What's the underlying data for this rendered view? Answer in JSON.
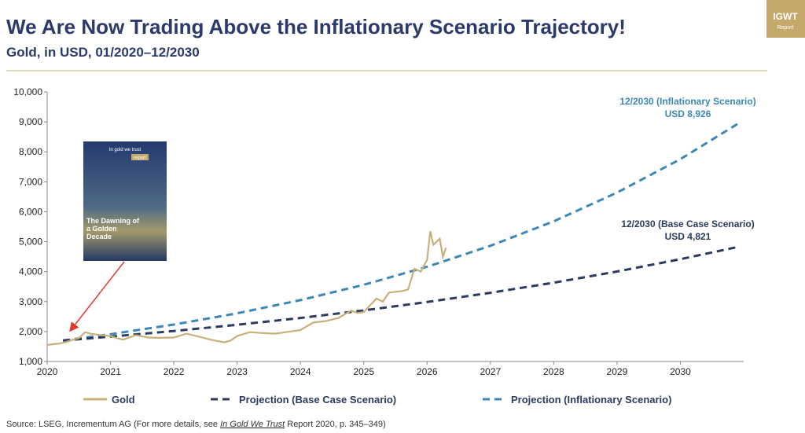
{
  "chart_data": {
    "type": "line",
    "title": "We Are Now Trading Above the Inflationary Scenario Trajectory!",
    "subtitle": "Gold, in USD, 01/2020–12/2030",
    "logo": {
      "title": "IGWT",
      "subtitle": "Report"
    },
    "cover": {
      "brand": "In gold we trust",
      "tag": "report",
      "title": "The Dawning of a Golden Decade"
    },
    "annotations": [
      {
        "title": "12/2030 (Inflationary Scenario)",
        "value": "USD 8,926"
      },
      {
        "title": "12/2030 (Base Case Scenario)",
        "value": "USD 4,821"
      }
    ],
    "xlim": [
      2020,
      2031
    ],
    "xticks": [
      2020,
      2021,
      2022,
      2023,
      2024,
      2025,
      2026,
      2027,
      2028,
      2029,
      2030
    ],
    "ylim": [
      1000,
      10000
    ],
    "yticks": [
      {
        "value": 1000,
        "label": "1,000"
      },
      {
        "value": 2000,
        "label": "2,000"
      },
      {
        "value": 3000,
        "label": "3,000"
      },
      {
        "value": 4000,
        "label": "4,000"
      },
      {
        "value": 5000,
        "label": "5,000"
      },
      {
        "value": 6000,
        "label": "6,000"
      },
      {
        "value": 7000,
        "label": "7,000"
      },
      {
        "value": 8000,
        "label": "8,000"
      },
      {
        "value": 9000,
        "label": "9,000"
      },
      {
        "value": 10000,
        "label": "10,000"
      }
    ],
    "series": [
      {
        "name": "Gold",
        "color": "#c8b07a",
        "dashed": false,
        "x": [
          2020.0,
          2020.1,
          2020.2,
          2020.3,
          2020.4,
          2020.5,
          2020.6,
          2020.7,
          2020.85,
          2021.0,
          2021.1,
          2021.2,
          2021.4,
          2021.6,
          2021.8,
          2022.0,
          2022.2,
          2022.4,
          2022.6,
          2022.8,
          2022.9,
          2023.0,
          2023.2,
          2023.4,
          2023.6,
          2023.8,
          2024.0,
          2024.2,
          2024.4,
          2024.6,
          2024.8,
          2024.9,
          2025.0,
          2025.2,
          2025.3,
          2025.4,
          2025.6,
          2025.7,
          2025.8,
          2025.9,
          2026.0,
          2026.05,
          2026.1,
          2026.2,
          2026.25,
          2026.3
        ],
        "values": [
          1550,
          1580,
          1600,
          1650,
          1720,
          1780,
          1980,
          1920,
          1880,
          1850,
          1780,
          1730,
          1880,
          1800,
          1790,
          1800,
          1930,
          1830,
          1720,
          1640,
          1700,
          1850,
          1980,
          1950,
          1930,
          1990,
          2050,
          2300,
          2350,
          2450,
          2700,
          2620,
          2650,
          3100,
          3000,
          3300,
          3350,
          3400,
          4100,
          4000,
          4400,
          5350,
          4900,
          5100,
          4500,
          4800
        ]
      },
      {
        "name": "Projection (Base Case Scenario)",
        "color": "#2b3a5e",
        "dashed": true,
        "x": [
          2020.25,
          2021,
          2022,
          2023,
          2024,
          2025,
          2026,
          2027,
          2028,
          2029,
          2030,
          2030.9
        ],
        "values": [
          1700,
          1829,
          2018,
          2225,
          2454,
          2706,
          2985,
          3292,
          3631,
          4005,
          4417,
          4821
        ]
      },
      {
        "name": "Projection (Inflationary Scenario)",
        "color": "#3d87b6",
        "dashed": true,
        "x": [
          2020.25,
          2021,
          2022,
          2023,
          2024,
          2025,
          2026,
          2027,
          2028,
          2029,
          2030,
          2030.9
        ],
        "values": [
          1700,
          1911,
          2233,
          2608,
          3048,
          3562,
          4161,
          4862,
          5681,
          6638,
          7757,
          8926
        ]
      }
    ],
    "source": {
      "before": "Source: LSEG, Incrementum AG (For more details, see ",
      "link": "In Gold We Trust",
      "after": " Report 2020, p. 345–349)"
    }
  }
}
